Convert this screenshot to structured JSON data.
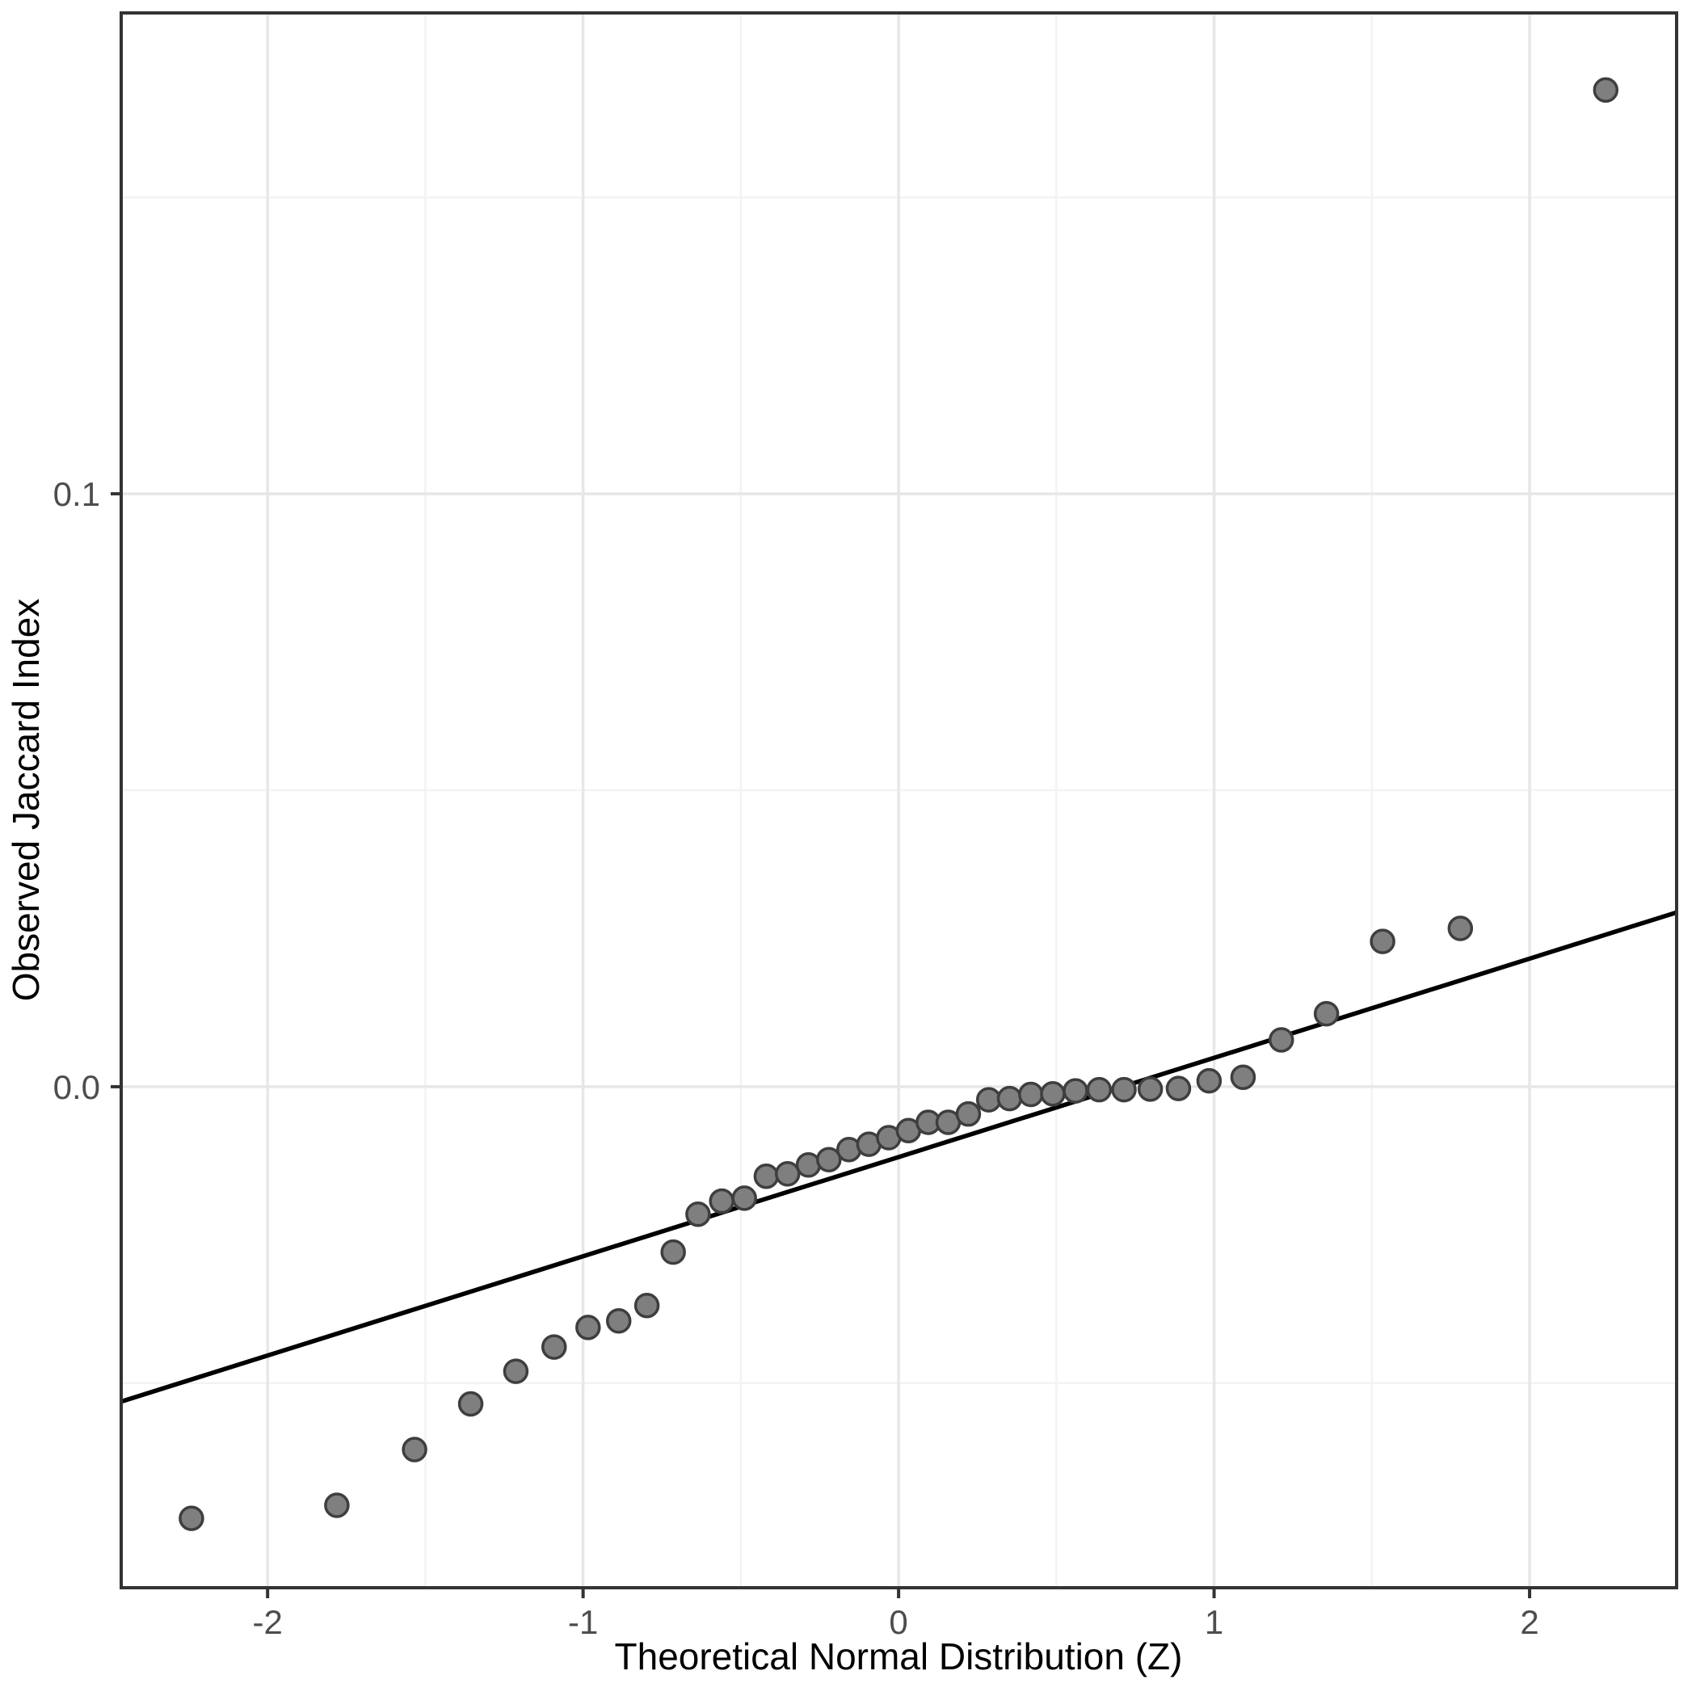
{
  "chart_data": {
    "type": "scatter",
    "title": "",
    "xlabel": "Theoretical Normal Distribution (Z)",
    "ylabel": "Observed Jaccard Index",
    "xlim": [
      -2.464,
      2.466
    ],
    "ylim": [
      -0.0845,
      0.1811
    ],
    "x_ticks": [
      -2,
      -1,
      0,
      1,
      2
    ],
    "x_tick_labels": [
      "-2",
      "-1",
      "0",
      "1",
      "2"
    ],
    "y_ticks": [
      0.0,
      0.1
    ],
    "y_tick_labels": [
      "0.0",
      "0.1"
    ],
    "x_minor_gridlines": [
      -1.5,
      -0.5,
      0.5,
      1.5
    ],
    "y_minor_gridlines": [
      -0.05,
      0.05,
      0.15
    ],
    "grid": "major+minor",
    "legend_position": "none",
    "series": [
      {
        "name": "observed-jaccard-qq-points",
        "type": "scatter",
        "points": [
          [
            -2.2414,
            -0.0728
          ],
          [
            -1.7805,
            -0.0706
          ],
          [
            -1.5341,
            -0.0612
          ],
          [
            -1.3562,
            -0.0535
          ],
          [
            -1.2131,
            -0.048
          ],
          [
            -1.0919,
            -0.0439
          ],
          [
            -0.9842,
            -0.0406
          ],
          [
            -0.8871,
            -0.0395
          ],
          [
            -0.7978,
            -0.0369
          ],
          [
            -0.7144,
            -0.0279
          ],
          [
            -0.6357,
            -0.0215
          ],
          [
            -0.5607,
            -0.0193
          ],
          [
            -0.4888,
            -0.0188
          ],
          [
            -0.4193,
            -0.0151
          ],
          [
            -0.3518,
            -0.0147
          ],
          [
            -0.2858,
            -0.0132
          ],
          [
            -0.2211,
            -0.0123
          ],
          [
            -0.1573,
            -0.0106
          ],
          [
            -0.0941,
            -0.0097
          ],
          [
            -0.0313,
            -0.0086
          ],
          [
            0.0313,
            -0.0074
          ],
          [
            0.0941,
            -0.006
          ],
          [
            0.1573,
            -0.006
          ],
          [
            0.2211,
            -0.0046
          ],
          [
            0.2858,
            -0.0022
          ],
          [
            0.3518,
            -0.002
          ],
          [
            0.4193,
            -0.0013
          ],
          [
            0.4888,
            -0.0012
          ],
          [
            0.5607,
            -0.0007
          ],
          [
            0.6357,
            -0.0005
          ],
          [
            0.7144,
            -0.0005
          ],
          [
            0.7978,
            -0.0004
          ],
          [
            0.8871,
            -0.0003
          ],
          [
            0.9842,
            0.001
          ],
          [
            1.0919,
            0.0016
          ],
          [
            1.2131,
            0.0079
          ],
          [
            1.3562,
            0.0123
          ],
          [
            1.5341,
            0.0245
          ],
          [
            1.7805,
            0.0267
          ],
          [
            2.2414,
            0.1681
          ]
        ]
      },
      {
        "name": "qq-reference-line",
        "type": "line",
        "slope": 0.01673,
        "intercept": -0.0119,
        "endpoints": [
          [
            -2.464,
            -0.0531
          ],
          [
            2.466,
            0.0294
          ]
        ]
      }
    ],
    "colors": {
      "background": "#ffffff",
      "panel_background": "#ffffff",
      "panel_border": "#333333",
      "grid_major": "#e7e7e7",
      "grid_minor": "#f3f3f3",
      "point_fill": "#7f7f7f",
      "point_stroke": "#3e3e3e",
      "reference_line": "#000000",
      "tick_mark": "#333333",
      "tick_label": "#4d4d4d",
      "axis_title": "#000000"
    }
  }
}
